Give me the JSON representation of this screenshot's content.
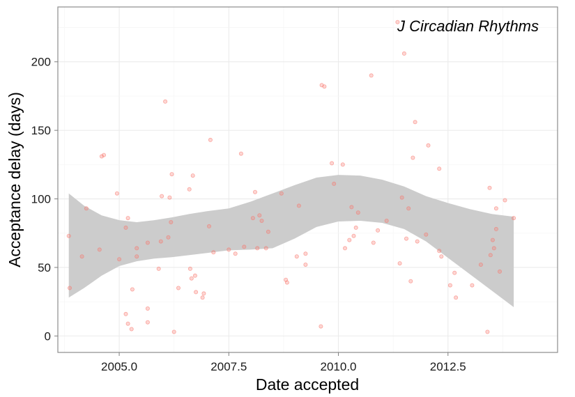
{
  "chart_data": {
    "type": "scatter",
    "title": "J Circadian Rhythms",
    "xlabel": "Date accepted",
    "ylabel": "Acceptance delay (days)",
    "xlim": [
      2003.6,
      2015.0
    ],
    "ylim": [
      -12,
      240
    ],
    "xticks": [
      2005.0,
      2007.5,
      2010.0,
      2012.5
    ],
    "xtick_labels": [
      "2005.0",
      "2007.5",
      "2010.0",
      "2012.5"
    ],
    "yticks": [
      0,
      50,
      100,
      150,
      200
    ],
    "ytick_labels": [
      "0",
      "50",
      "100",
      "150",
      "200"
    ],
    "grid": true,
    "point_color": "#F8766D",
    "band_color": "#CCCCCC",
    "points": [
      [
        2003.85,
        73
      ],
      [
        2003.87,
        35
      ],
      [
        2004.15,
        58
      ],
      [
        2004.25,
        93
      ],
      [
        2004.55,
        63
      ],
      [
        2004.6,
        131
      ],
      [
        2004.65,
        132
      ],
      [
        2004.95,
        104
      ],
      [
        2005.0,
        56
      ],
      [
        2005.15,
        79
      ],
      [
        2005.2,
        86
      ],
      [
        2005.15,
        16
      ],
      [
        2005.2,
        9
      ],
      [
        2005.28,
        5
      ],
      [
        2005.3,
        34
      ],
      [
        2005.4,
        64
      ],
      [
        2005.4,
        58
      ],
      [
        2005.65,
        68
      ],
      [
        2005.65,
        20
      ],
      [
        2005.65,
        10
      ],
      [
        2005.9,
        49
      ],
      [
        2005.95,
        69
      ],
      [
        2005.97,
        102
      ],
      [
        2006.05,
        171
      ],
      [
        2006.12,
        72
      ],
      [
        2006.15,
        101
      ],
      [
        2006.18,
        83
      ],
      [
        2006.2,
        118
      ],
      [
        2006.25,
        3
      ],
      [
        2006.35,
        35
      ],
      [
        2006.6,
        107
      ],
      [
        2006.62,
        49
      ],
      [
        2006.65,
        42
      ],
      [
        2006.68,
        117
      ],
      [
        2006.73,
        44
      ],
      [
        2006.75,
        32
      ],
      [
        2006.9,
        28
      ],
      [
        2006.93,
        31
      ],
      [
        2007.05,
        80
      ],
      [
        2007.08,
        143
      ],
      [
        2007.15,
        61
      ],
      [
        2007.5,
        63
      ],
      [
        2007.65,
        60
      ],
      [
        2007.78,
        133
      ],
      [
        2007.85,
        65
      ],
      [
        2008.05,
        86
      ],
      [
        2008.1,
        105
      ],
      [
        2008.15,
        64
      ],
      [
        2008.2,
        88
      ],
      [
        2008.25,
        84
      ],
      [
        2008.35,
        64
      ],
      [
        2008.4,
        76
      ],
      [
        2008.7,
        104
      ],
      [
        2008.8,
        41
      ],
      [
        2008.83,
        39
      ],
      [
        2009.05,
        58
      ],
      [
        2009.1,
        95
      ],
      [
        2009.25,
        60
      ],
      [
        2009.25,
        52
      ],
      [
        2009.6,
        7
      ],
      [
        2009.62,
        183
      ],
      [
        2009.68,
        182
      ],
      [
        2009.85,
        126
      ],
      [
        2009.9,
        111
      ],
      [
        2010.1,
        125
      ],
      [
        2010.15,
        64
      ],
      [
        2010.25,
        70
      ],
      [
        2010.3,
        94
      ],
      [
        2010.35,
        73
      ],
      [
        2010.4,
        79
      ],
      [
        2010.45,
        90
      ],
      [
        2010.75,
        190
      ],
      [
        2010.8,
        68
      ],
      [
        2010.9,
        77
      ],
      [
        2011.1,
        84
      ],
      [
        2011.35,
        229
      ],
      [
        2011.4,
        53
      ],
      [
        2011.45,
        101
      ],
      [
        2011.5,
        206
      ],
      [
        2011.55,
        71
      ],
      [
        2011.6,
        93
      ],
      [
        2011.65,
        40
      ],
      [
        2011.7,
        130
      ],
      [
        2011.75,
        156
      ],
      [
        2011.8,
        69
      ],
      [
        2012.0,
        74
      ],
      [
        2012.05,
        139
      ],
      [
        2012.3,
        122
      ],
      [
        2012.3,
        62
      ],
      [
        2012.35,
        58
      ],
      [
        2012.55,
        37
      ],
      [
        2012.65,
        46
      ],
      [
        2012.68,
        28
      ],
      [
        2013.05,
        37
      ],
      [
        2013.25,
        52
      ],
      [
        2013.4,
        3
      ],
      [
        2013.45,
        108
      ],
      [
        2013.47,
        59
      ],
      [
        2013.52,
        70
      ],
      [
        2013.55,
        64
      ],
      [
        2013.6,
        78
      ],
      [
        2013.6,
        93
      ],
      [
        2013.68,
        47
      ],
      [
        2013.8,
        99
      ],
      [
        2014.0,
        86
      ]
    ],
    "smooth_upper": [
      [
        2003.85,
        104
      ],
      [
        2004.2,
        95
      ],
      [
        2004.6,
        88
      ],
      [
        2005.0,
        84.5
      ],
      [
        2005.4,
        83
      ],
      [
        2005.8,
        84.5
      ],
      [
        2006.2,
        86.5
      ],
      [
        2006.6,
        89
      ],
      [
        2007.0,
        91
      ],
      [
        2007.5,
        93
      ],
      [
        2008.0,
        98
      ],
      [
        2008.5,
        104
      ],
      [
        2009.0,
        110
      ],
      [
        2009.5,
        115.5
      ],
      [
        2010.0,
        117.5
      ],
      [
        2010.5,
        117
      ],
      [
        2011.0,
        114
      ],
      [
        2011.5,
        109
      ],
      [
        2012.0,
        102
      ],
      [
        2012.5,
        97
      ],
      [
        2013.0,
        92.5
      ],
      [
        2013.5,
        89
      ],
      [
        2014.0,
        87
      ]
    ],
    "smooth_lower": [
      [
        2003.85,
        28
      ],
      [
        2004.2,
        35
      ],
      [
        2004.6,
        44
      ],
      [
        2005.0,
        51
      ],
      [
        2005.4,
        54.5
      ],
      [
        2005.8,
        56.5
      ],
      [
        2006.2,
        57.5
      ],
      [
        2006.6,
        59
      ],
      [
        2007.0,
        60.5
      ],
      [
        2007.5,
        62.5
      ],
      [
        2008.0,
        63
      ],
      [
        2008.5,
        64
      ],
      [
        2009.0,
        71
      ],
      [
        2009.5,
        79.5
      ],
      [
        2010.0,
        83.5
      ],
      [
        2010.5,
        84
      ],
      [
        2011.0,
        82.5
      ],
      [
        2011.5,
        78
      ],
      [
        2012.0,
        69
      ],
      [
        2012.5,
        57
      ],
      [
        2013.0,
        45
      ],
      [
        2013.5,
        33
      ],
      [
        2014.0,
        21
      ]
    ]
  }
}
